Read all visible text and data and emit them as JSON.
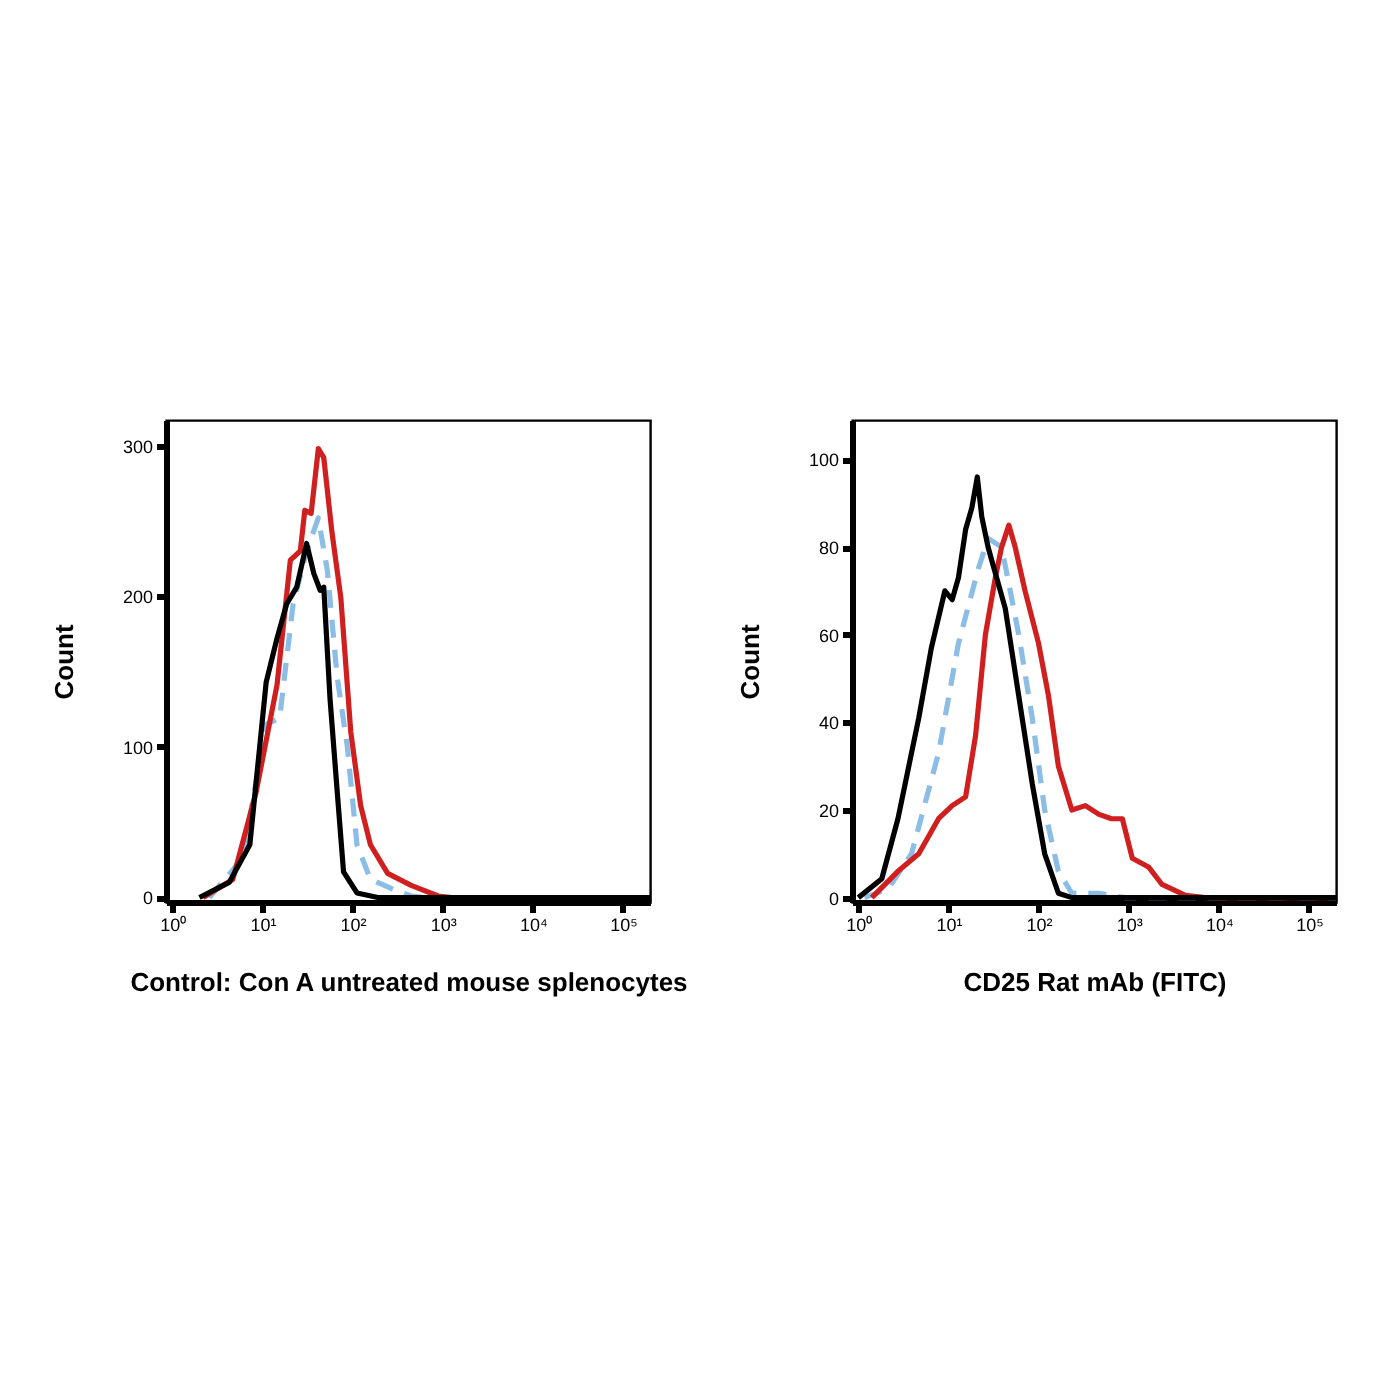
{
  "chart_data": [
    {
      "type": "line",
      "xlabel": "Control: Con A untreated mouse splenocytes",
      "ylabel": "Count",
      "log": "x",
      "grid": false,
      "xlim": [
        0.85,
        200000
      ],
      "xticks": [
        {
          "value": 1,
          "label": "10⁰"
        },
        {
          "value": 10,
          "label": "10¹"
        },
        {
          "value": 100,
          "label": "10²"
        },
        {
          "value": 1000,
          "label": "10³"
        },
        {
          "value": 10000,
          "label": "10⁴"
        },
        {
          "value": 100000,
          "label": "10⁵"
        }
      ],
      "ylim": [
        -3,
        317
      ],
      "yticks": [
        0,
        100,
        200,
        300
      ],
      "series": [
        {
          "color": "#8bbde6",
          "line_style": "dashed",
          "x": [
            2.57,
            6.03,
            11.0,
            15.5,
            21.9,
            30.9,
            41.7,
            52.5,
            67.6,
            87.1,
            112,
            158,
            269,
            447,
            631,
            200000
          ],
          "values": [
            0,
            26,
            115,
            119,
            195,
            230,
            252,
            217,
            146,
            101,
            35,
            12,
            6,
            1,
            0,
            0
          ]
        },
        {
          "color": "#d01f1f",
          "line_style": "solid",
          "x": [
            2.19,
            4.68,
            8.51,
            14.5,
            20.4,
            26.3,
            29.5,
            34.7,
            41.7,
            47.9,
            58.9,
            74.1,
            95.5,
            123,
            158,
            245,
            447,
            891,
            1259,
            200000
          ],
          "values": [
            0,
            12,
            70,
            141,
            224,
            230,
            257,
            255,
            298,
            292,
            243,
            199,
            110,
            61,
            35,
            16,
            8,
            1,
            0,
            0
          ]
        },
        {
          "color": "#000000",
          "line_style": "solid",
          "x": [
            2.0,
            4.27,
            7.24,
            11.0,
            14.5,
            18.6,
            24.0,
            30.9,
            37.2,
            43.7,
            47.9,
            56.2,
            67.6,
            79.4,
            112,
            191,
            200000
          ],
          "values": [
            0,
            10,
            35,
            143,
            172,
            195,
            206,
            235,
            215,
            204,
            206,
            132,
            70,
            17,
            3,
            0,
            0
          ]
        }
      ]
    },
    {
      "type": "line",
      "xlabel": "CD25 Rat mAb (FITC)",
      "ylabel": "Count",
      "log": "x",
      "grid": false,
      "xlim": [
        0.85,
        200000
      ],
      "xticks": [
        {
          "value": 1,
          "label": "10⁰"
        },
        {
          "value": 10,
          "label": "10¹"
        },
        {
          "value": 100,
          "label": "10²"
        },
        {
          "value": 1000,
          "label": "10³"
        },
        {
          "value": 10000,
          "label": "10⁴"
        },
        {
          "value": 100000,
          "label": "10⁵"
        }
      ],
      "ylim": [
        -1,
        109
      ],
      "yticks": [
        0,
        20,
        40,
        60,
        80,
        100
      ],
      "series": [
        {
          "color": "#8bbde6",
          "line_style": "dashed",
          "x": [
            1.17,
            2.14,
            3.89,
            7.76,
            12.9,
            21.4,
            27.5,
            38.9,
            60.3,
            85.1,
            117,
            166,
            234,
            468,
            912,
            3020,
            200000
          ],
          "values": [
            0,
            2,
            10,
            33,
            58,
            75,
            82,
            80,
            60,
            41,
            20,
            6,
            1,
            1,
            0,
            0,
            0
          ]
        },
        {
          "color": "#d01f1f",
          "line_style": "solid",
          "x": [
            1.41,
            2.75,
            4.68,
            7.76,
            11.0,
            15.5,
            20.0,
            25.7,
            33.1,
            38.9,
            46.8,
            55.0,
            70.8,
            100,
            129,
            166,
            234,
            331,
            468,
            646,
            851,
            1096,
            1660,
            2344,
            4266,
            7079,
            200000
          ],
          "values": [
            0,
            6,
            10,
            18,
            21,
            23,
            37,
            60,
            73,
            80,
            85,
            80,
            70,
            58,
            46,
            30,
            20,
            21,
            19,
            18,
            18,
            9,
            7,
            3,
            0.5,
            0,
            0
          ]
        },
        {
          "color": "#000000",
          "line_style": "solid",
          "x": [
            1,
            1.82,
            2.75,
            4.68,
            6.46,
            9.12,
            11.0,
            12.9,
            15.5,
            18.2,
            20.9,
            23.4,
            27.5,
            30.2,
            42.7,
            60.3,
            85.1,
            117,
            166,
            234,
            200000
          ],
          "values": [
            0,
            4.3,
            18,
            41,
            57,
            70,
            68,
            73,
            84,
            89,
            96,
            87,
            80,
            77,
            66,
            46,
            26,
            10,
            1,
            0,
            0
          ]
        }
      ]
    }
  ]
}
